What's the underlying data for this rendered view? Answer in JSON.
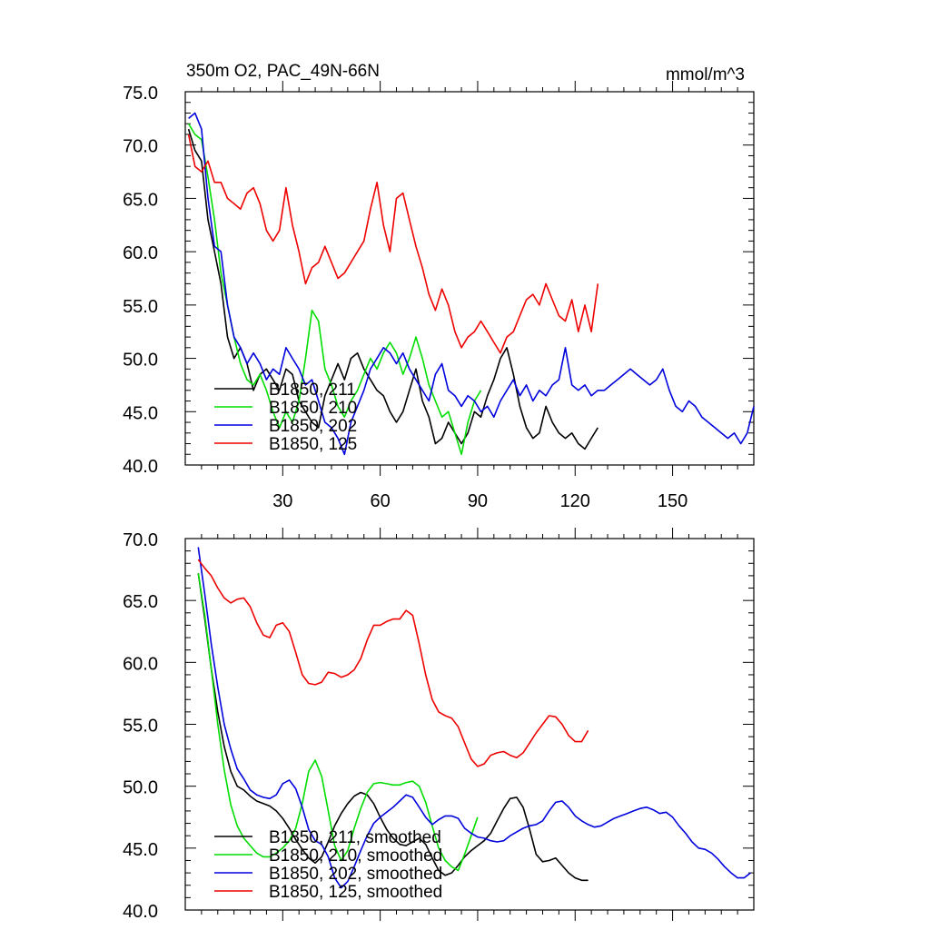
{
  "chart_data": [
    {
      "type": "line",
      "title": "350m O2, PAC_49N-66N",
      "units_label": "mmol/m^3",
      "xlim": [
        0,
        175
      ],
      "ylim": [
        40,
        75
      ],
      "x_ticks": [
        30,
        60,
        90,
        120,
        150
      ],
      "x_tick_labels": [
        "30",
        "60",
        "90",
        "120",
        "150"
      ],
      "y_ticks": [
        40,
        45,
        50,
        55,
        60,
        65,
        70,
        75
      ],
      "y_tick_labels": [
        "40.0",
        "45.0",
        "50.0",
        "55.0",
        "60.0",
        "65.0",
        "70.0",
        "75.0"
      ],
      "series": [
        {
          "name": "B1850, 211",
          "color": "#000000",
          "x": [
            1,
            3,
            5,
            7,
            9,
            11,
            13,
            15,
            17,
            19,
            21,
            23,
            25,
            27,
            29,
            31,
            33,
            35,
            37,
            39,
            41,
            43,
            45,
            47,
            49,
            51,
            53,
            55,
            57,
            59,
            61,
            63,
            65,
            67,
            69,
            71,
            73,
            75,
            77,
            79,
            81,
            83,
            85,
            87,
            89,
            91,
            93,
            95,
            97,
            99,
            101,
            103,
            105,
            107,
            109,
            111,
            113,
            115,
            117,
            119,
            121,
            123,
            125,
            127
          ],
          "y": [
            71.5,
            69.5,
            68.5,
            63.0,
            60.0,
            57.0,
            52.0,
            50.0,
            51.0,
            49.5,
            47.0,
            48.5,
            49.0,
            48.0,
            47.0,
            49.0,
            48.5,
            46.0,
            45.0,
            44.0,
            43.5,
            46.5,
            48.0,
            49.5,
            48.0,
            50.0,
            50.5,
            49.0,
            48.0,
            47.0,
            46.5,
            45.0,
            44.0,
            45.0,
            47.0,
            49.0,
            46.0,
            44.5,
            42.0,
            42.5,
            44.0,
            43.0,
            42.0,
            43.0,
            45.0,
            44.5,
            46.5,
            48.0,
            50.0,
            51.0,
            48.5,
            45.5,
            43.5,
            42.5,
            43.0,
            45.5,
            44.0,
            43.0,
            42.5,
            43.0,
            42.0,
            41.5,
            42.5,
            43.5
          ]
        },
        {
          "name": "B1850, 210",
          "color": "#00dd00",
          "x": [
            1,
            3,
            5,
            7,
            9,
            11,
            13,
            15,
            17,
            19,
            21,
            23,
            25,
            27,
            29,
            31,
            33,
            35,
            37,
            39,
            41,
            43,
            45,
            47,
            49,
            51,
            53,
            55,
            57,
            59,
            61,
            63,
            65,
            67,
            69,
            71,
            73,
            75,
            77,
            79,
            81,
            83,
            85,
            87,
            89,
            91
          ],
          "y": [
            72.0,
            71.0,
            70.5,
            67.0,
            63.0,
            58.0,
            55.0,
            52.0,
            49.5,
            48.0,
            47.5,
            48.5,
            47.0,
            45.0,
            43.5,
            45.0,
            44.0,
            46.0,
            50.0,
            54.5,
            53.5,
            49.0,
            47.5,
            45.5,
            44.5,
            46.0,
            47.0,
            48.5,
            50.0,
            49.0,
            50.5,
            51.5,
            50.5,
            48.5,
            50.0,
            52.0,
            50.0,
            47.5,
            46.0,
            44.5,
            45.0,
            43.0,
            41.0,
            44.0,
            46.0,
            47.0
          ]
        },
        {
          "name": "B1850, 202",
          "color": "#0000dd",
          "x": [
            1,
            3,
            5,
            7,
            9,
            11,
            13,
            15,
            17,
            19,
            21,
            23,
            25,
            27,
            29,
            31,
            33,
            35,
            37,
            39,
            41,
            43,
            45,
            47,
            49,
            51,
            53,
            55,
            57,
            59,
            61,
            63,
            65,
            67,
            69,
            71,
            73,
            75,
            77,
            79,
            81,
            83,
            85,
            87,
            89,
            91,
            93,
            95,
            97,
            99,
            101,
            103,
            105,
            107,
            109,
            111,
            113,
            115,
            117,
            119,
            121,
            123,
            125,
            127,
            129,
            131,
            133,
            135,
            137,
            139,
            141,
            143,
            145,
            147,
            149,
            151,
            153,
            155,
            157,
            159,
            161,
            163,
            165,
            167,
            169,
            171,
            173,
            175
          ],
          "y": [
            72.5,
            73.0,
            71.5,
            65.0,
            60.5,
            60.0,
            55.0,
            52.0,
            51.0,
            49.5,
            50.5,
            49.5,
            48.0,
            49.0,
            48.5,
            51.0,
            50.0,
            49.0,
            47.5,
            48.0,
            46.0,
            44.0,
            43.5,
            42.5,
            41.0,
            44.0,
            45.5,
            47.0,
            49.0,
            50.0,
            51.0,
            50.5,
            49.5,
            50.5,
            49.0,
            48.0,
            47.0,
            46.0,
            48.5,
            49.5,
            47.0,
            46.5,
            45.5,
            46.5,
            46.0,
            45.0,
            45.5,
            44.5,
            46.0,
            47.0,
            48.0,
            46.5,
            47.5,
            46.0,
            47.0,
            46.5,
            47.5,
            48.0,
            51.0,
            47.5,
            47.0,
            47.5,
            46.5,
            47.0,
            47.0,
            47.5,
            48.0,
            48.5,
            49.0,
            48.5,
            48.0,
            47.5,
            48.0,
            49.0,
            47.0,
            45.5,
            45.0,
            46.0,
            45.5,
            44.5,
            44.0,
            43.5,
            43.0,
            42.5,
            43.0,
            42.0,
            43.0,
            45.5
          ]
        },
        {
          "name": "B1850, 125",
          "color": "#ee0000",
          "x": [
            1,
            3,
            5,
            7,
            9,
            11,
            13,
            15,
            17,
            19,
            21,
            23,
            25,
            27,
            29,
            31,
            33,
            35,
            37,
            39,
            41,
            43,
            45,
            47,
            49,
            51,
            53,
            55,
            57,
            59,
            61,
            63,
            65,
            67,
            69,
            71,
            73,
            75,
            77,
            79,
            81,
            83,
            85,
            87,
            89,
            91,
            93,
            95,
            97,
            99,
            101,
            103,
            105,
            107,
            109,
            111,
            113,
            115,
            117,
            119,
            121,
            123,
            125,
            127
          ],
          "y": [
            71.0,
            68.0,
            67.5,
            68.5,
            66.5,
            66.5,
            65.0,
            64.5,
            64.0,
            65.5,
            66.0,
            64.5,
            62.0,
            61.0,
            62.0,
            66.0,
            62.5,
            60.0,
            57.0,
            58.5,
            59.0,
            60.5,
            59.0,
            57.5,
            58.0,
            59.0,
            60.0,
            61.0,
            64.0,
            66.5,
            62.5,
            60.0,
            65.0,
            65.5,
            63.0,
            60.5,
            58.5,
            56.0,
            54.5,
            56.5,
            55.0,
            52.5,
            51.0,
            52.0,
            52.5,
            53.5,
            52.5,
            51.5,
            50.5,
            52.0,
            52.5,
            54.0,
            55.5,
            56.0,
            55.0,
            57.0,
            55.5,
            54.0,
            53.5,
            55.5,
            52.5,
            55.0,
            52.5,
            57.0
          ]
        }
      ]
    },
    {
      "type": "line",
      "xlim": [
        0,
        175
      ],
      "ylim": [
        40,
        70
      ],
      "x_ticks": [
        30,
        60,
        90,
        120,
        150
      ],
      "y_ticks": [
        40,
        45,
        50,
        55,
        60,
        65,
        70
      ],
      "y_tick_labels": [
        "40.0",
        "45.0",
        "50.0",
        "55.0",
        "60.0",
        "65.0",
        "70.0"
      ],
      "series": [
        {
          "name": "B1850, 211, smoothed",
          "color": "#000000",
          "x": [
            4,
            6,
            8,
            10,
            12,
            14,
            16,
            18,
            20,
            22,
            24,
            26,
            28,
            30,
            32,
            34,
            36,
            38,
            40,
            42,
            44,
            46,
            48,
            50,
            52,
            54,
            56,
            58,
            60,
            62,
            64,
            66,
            68,
            70,
            72,
            74,
            76,
            78,
            80,
            82,
            84,
            86,
            88,
            90,
            92,
            94,
            96,
            98,
            100,
            102,
            104,
            106,
            108,
            110,
            112,
            114,
            116,
            118,
            120,
            122,
            124
          ],
          "y": [
            67.2,
            63.5,
            59.5,
            56.0,
            53.2,
            51.2,
            50.0,
            49.7,
            49.2,
            48.8,
            48.6,
            48.4,
            48.0,
            47.4,
            46.6,
            45.7,
            44.9,
            44.2,
            43.8,
            44.3,
            45.5,
            46.8,
            47.8,
            48.6,
            49.2,
            49.5,
            49.3,
            48.6,
            47.5,
            46.5,
            45.8,
            45.3,
            45.2,
            45.5,
            45.8,
            45.3,
            44.2,
            43.2,
            42.8,
            43.0,
            43.6,
            44.3,
            44.8,
            45.2,
            45.6,
            46.2,
            47.2,
            48.2,
            49.0,
            49.1,
            48.3,
            46.5,
            44.5,
            43.9,
            44.0,
            44.2,
            43.6,
            43.0,
            42.6,
            42.4,
            42.4
          ]
        },
        {
          "name": "B1850, 210, smoothed",
          "color": "#00dd00",
          "x": [
            4,
            6,
            8,
            10,
            12,
            14,
            16,
            18,
            20,
            22,
            24,
            26,
            28,
            30,
            32,
            34,
            36,
            38,
            40,
            42,
            44,
            46,
            48,
            50,
            52,
            54,
            56,
            58,
            60,
            62,
            64,
            66,
            68,
            70,
            72,
            74,
            76,
            78,
            80,
            82,
            84,
            86,
            88,
            90
          ],
          "y": [
            67.2,
            63.8,
            59.5,
            55.0,
            51.3,
            48.5,
            46.8,
            45.8,
            45.2,
            44.6,
            44.3,
            44.3,
            44.6,
            45.0,
            45.6,
            46.6,
            48.6,
            51.2,
            52.1,
            50.8,
            48.0,
            45.2,
            44.0,
            44.8,
            46.6,
            48.2,
            49.5,
            50.2,
            50.3,
            50.2,
            50.1,
            50.1,
            50.3,
            50.4,
            50.0,
            48.7,
            46.8,
            45.0,
            44.0,
            43.5,
            43.2,
            44.5,
            46.0,
            47.5
          ]
        },
        {
          "name": "B1850, 202, smoothed",
          "color": "#0000dd",
          "x": [
            4,
            6,
            8,
            10,
            12,
            14,
            16,
            18,
            20,
            22,
            24,
            26,
            28,
            30,
            32,
            34,
            36,
            38,
            40,
            42,
            44,
            46,
            48,
            50,
            52,
            54,
            56,
            58,
            60,
            62,
            64,
            66,
            68,
            70,
            72,
            74,
            76,
            78,
            80,
            82,
            84,
            86,
            88,
            90,
            92,
            94,
            96,
            98,
            100,
            102,
            104,
            106,
            108,
            110,
            112,
            114,
            116,
            118,
            120,
            122,
            124,
            126,
            128,
            130,
            132,
            134,
            136,
            138,
            140,
            142,
            144,
            146,
            148,
            150,
            152,
            154,
            156,
            158,
            160,
            162,
            164,
            166,
            168,
            170,
            172,
            174
          ],
          "y": [
            69.3,
            65.5,
            61.5,
            58.0,
            55.0,
            53.0,
            51.4,
            50.6,
            49.7,
            49.3,
            49.1,
            49.0,
            49.3,
            50.2,
            50.5,
            49.8,
            48.3,
            46.5,
            45.6,
            45.3,
            44.3,
            42.6,
            41.8,
            42.3,
            43.5,
            44.8,
            46.0,
            47.0,
            47.5,
            47.9,
            48.3,
            48.8,
            49.3,
            49.1,
            48.3,
            47.5,
            46.9,
            47.3,
            47.6,
            47.6,
            47.4,
            46.6,
            46.2,
            45.9,
            45.8,
            45.6,
            45.5,
            45.6,
            46.0,
            46.3,
            46.6,
            46.8,
            46.9,
            47.2,
            48.0,
            48.7,
            48.8,
            48.3,
            47.6,
            47.2,
            46.9,
            46.7,
            46.8,
            47.1,
            47.4,
            47.6,
            47.8,
            48.0,
            48.2,
            48.3,
            48.1,
            47.8,
            47.9,
            47.5,
            46.8,
            46.2,
            45.5,
            45.0,
            44.9,
            44.6,
            44.1,
            43.5,
            43.0,
            42.6,
            42.6,
            43.0
          ]
        },
        {
          "name": "B1850, 125, smoothed",
          "color": "#ee0000",
          "x": [
            4,
            6,
            8,
            10,
            12,
            14,
            16,
            18,
            20,
            22,
            24,
            26,
            28,
            30,
            32,
            34,
            36,
            38,
            40,
            42,
            44,
            46,
            48,
            50,
            52,
            54,
            56,
            58,
            60,
            62,
            64,
            66,
            68,
            70,
            72,
            74,
            76,
            78,
            80,
            82,
            84,
            86,
            88,
            90,
            92,
            94,
            96,
            98,
            100,
            102,
            104,
            106,
            108,
            110,
            112,
            114,
            116,
            118,
            120,
            122,
            124
          ],
          "y": [
            68.3,
            67.6,
            67.0,
            66.0,
            65.2,
            64.8,
            65.1,
            65.2,
            64.5,
            63.2,
            62.2,
            62.0,
            63.0,
            63.2,
            62.5,
            60.8,
            59.0,
            58.3,
            58.2,
            58.4,
            59.2,
            59.1,
            58.8,
            59.0,
            59.4,
            60.3,
            61.8,
            63.0,
            63.0,
            63.3,
            63.5,
            63.5,
            64.2,
            63.8,
            61.5,
            59.0,
            57.0,
            56.0,
            55.7,
            55.5,
            54.8,
            53.5,
            52.2,
            51.6,
            51.8,
            52.5,
            52.7,
            52.8,
            52.5,
            52.3,
            52.7,
            53.5,
            54.3,
            55.0,
            55.7,
            55.6,
            55.0,
            54.1,
            53.6,
            53.6,
            54.5
          ]
        }
      ]
    }
  ]
}
